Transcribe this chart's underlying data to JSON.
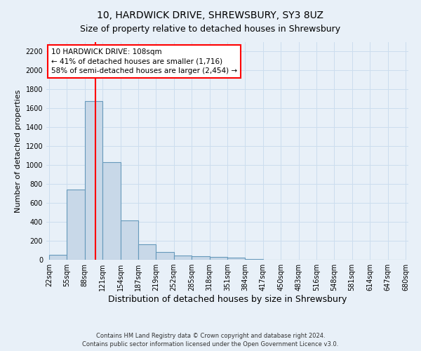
{
  "title_line1": "10, HARDWICK DRIVE, SHREWSBURY, SY3 8UZ",
  "title_line2": "Size of property relative to detached houses in Shrewsbury",
  "xlabel": "Distribution of detached houses by size in Shrewsbury",
  "ylabel": "Number of detached properties",
  "footnote": "Contains HM Land Registry data © Crown copyright and database right 2024.\nContains public sector information licensed under the Open Government Licence v3.0.",
  "bin_edges": [
    22,
    55,
    88,
    121,
    154,
    187,
    219,
    252,
    285,
    318,
    351,
    384,
    417,
    450,
    483,
    516,
    548,
    581,
    614,
    647,
    680
  ],
  "bar_heights": [
    55,
    745,
    1680,
    1035,
    415,
    160,
    85,
    45,
    40,
    30,
    20,
    10,
    0,
    0,
    0,
    0,
    0,
    0,
    0,
    0
  ],
  "bar_color": "#c8d8e8",
  "bar_edgecolor": "#6699bb",
  "bar_linewidth": 0.8,
  "vline_x": 108,
  "vline_color": "red",
  "vline_linewidth": 1.5,
  "annotation_text": "10 HARDWICK DRIVE: 108sqm\n← 41% of detached houses are smaller (1,716)\n58% of semi-detached houses are larger (2,454) →",
  "annotation_box_edgecolor": "red",
  "annotation_box_facecolor": "white",
  "annotation_fontsize": 7.5,
  "ylim": [
    0,
    2300
  ],
  "yticks": [
    0,
    200,
    400,
    600,
    800,
    1000,
    1200,
    1400,
    1600,
    1800,
    2000,
    2200
  ],
  "grid_color": "#ccddee",
  "background_color": "#e8f0f8",
  "title_fontsize": 10,
  "subtitle_fontsize": 9,
  "xlabel_fontsize": 9,
  "ylabel_fontsize": 8,
  "tick_fontsize": 7
}
